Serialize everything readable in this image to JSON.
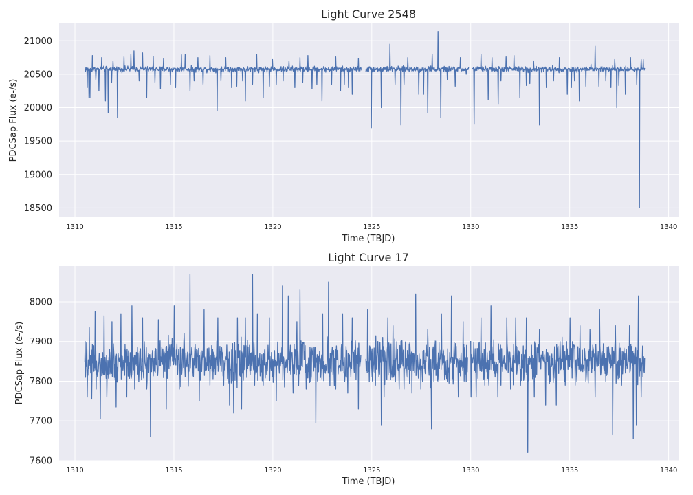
{
  "chart_data": [
    {
      "type": "line",
      "title": "Light Curve 2548",
      "xlabel": "Time (TBJD)",
      "ylabel": "PDCSap Flux (e-/s)",
      "xlim": [
        1309.2,
        1340.5
      ],
      "ylim": [
        18360,
        21260
      ],
      "xticks": [
        1310,
        1315,
        1320,
        1325,
        1330,
        1335,
        1340
      ],
      "yticks": [
        18500,
        19000,
        19500,
        20000,
        20500,
        21000
      ],
      "grid": true,
      "color": "#4c72b0",
      "series": [
        {
          "baseline": 20575,
          "noise": 30,
          "segments": [
            [
              1310.5,
              1324.5
            ],
            [
              1324.7,
              1329.9
            ],
            [
              1330.05,
              1338.8
            ]
          ],
          "x": [
            1310.55,
            1310.62,
            1310.7,
            1310.76,
            1310.82,
            1310.88,
            1311.05,
            1311.22,
            1311.35,
            1311.55,
            1311.68,
            1311.85,
            1311.93,
            1312.15,
            1312.48,
            1312.82,
            1312.98,
            1313.25,
            1313.42,
            1313.62,
            1313.95,
            1314.05,
            1314.32,
            1314.48,
            1314.82,
            1315.08,
            1315.38,
            1315.58,
            1315.82,
            1316.02,
            1316.22,
            1316.48,
            1316.82,
            1317.18,
            1317.38,
            1317.62,
            1317.92,
            1318.18,
            1318.48,
            1318.62,
            1318.98,
            1319.18,
            1319.52,
            1319.82,
            1319.98,
            1320.18,
            1320.52,
            1320.82,
            1321.12,
            1321.38,
            1321.52,
            1321.78,
            1321.98,
            1322.22,
            1322.48,
            1322.98,
            1323.18,
            1323.42,
            1323.62,
            1323.82,
            1324.02,
            1324.32,
            1324.98,
            1325.48,
            1325.92,
            1326.18,
            1326.48,
            1326.62,
            1326.82,
            1327.38,
            1327.62,
            1327.82,
            1328.05,
            1328.35,
            1328.48,
            1328.82,
            1329.22,
            1329.48,
            1329.78,
            1330.18,
            1330.52,
            1330.88,
            1331.08,
            1331.38,
            1331.52,
            1331.78,
            1332.18,
            1332.48,
            1332.82,
            1332.98,
            1333.18,
            1333.48,
            1333.82,
            1334.18,
            1334.48,
            1334.88,
            1335.08,
            1335.25,
            1335.48,
            1335.82,
            1336.08,
            1336.28,
            1336.48,
            1336.82,
            1337.08,
            1337.28,
            1337.38,
            1337.48,
            1337.82,
            1338.08,
            1338.38,
            1338.52,
            1338.62,
            1338.72
          ],
          "y": [
            20600,
            20300,
            20150,
            20150,
            20560,
            20780,
            20420,
            20250,
            20750,
            20100,
            19920,
            20380,
            20700,
            19850,
            20760,
            20800,
            20850,
            20400,
            20820,
            20150,
            20770,
            20380,
            20280,
            20730,
            20350,
            20300,
            20790,
            20800,
            20250,
            20400,
            20750,
            20350,
            20780,
            19950,
            20400,
            20750,
            20300,
            20320,
            20400,
            20100,
            20350,
            20800,
            20150,
            20320,
            20720,
            20350,
            20400,
            20700,
            20300,
            20750,
            20380,
            20780,
            20280,
            20350,
            20100,
            20350,
            20760,
            20250,
            20350,
            20300,
            20200,
            20740,
            19700,
            20000,
            20950,
            20350,
            19740,
            20350,
            20750,
            20200,
            20200,
            19920,
            20800,
            21140,
            19850,
            20420,
            20320,
            20750,
            20500,
            19750,
            20800,
            20120,
            20750,
            20050,
            20400,
            20760,
            20780,
            20150,
            20330,
            20360,
            20700,
            19740,
            20300,
            20400,
            20750,
            20200,
            20300,
            20400,
            20100,
            20320,
            20650,
            20920,
            20320,
            20400,
            20300,
            20720,
            20000,
            20330,
            20200,
            20750,
            20350,
            18500,
            20720,
            20720
          ]
        }
      ]
    },
    {
      "type": "line",
      "title": "Light Curve 17",
      "xlabel": "Time (TBJD)",
      "ylabel": "PDCSap Flux (e-/s)",
      "xlim": [
        1309.2,
        1340.5
      ],
      "ylim": [
        7600,
        8090
      ],
      "xticks": [
        1310,
        1315,
        1320,
        1325,
        1330,
        1335,
        1340
      ],
      "yticks": [
        7600,
        7700,
        7800,
        7900,
        8000
      ],
      "grid": true,
      "color": "#4c72b0",
      "series": [
        {
          "baseline": 7850,
          "noise": 38,
          "segments": [
            [
              1310.5,
              1324.45
            ],
            [
              1324.7,
              1329.85
            ],
            [
              1330.0,
              1338.8
            ]
          ],
          "x": [
            1310.52,
            1310.62,
            1310.72,
            1310.85,
            1311.02,
            1311.08,
            1311.28,
            1311.48,
            1311.62,
            1311.88,
            1312.08,
            1312.32,
            1312.62,
            1312.88,
            1313.02,
            1313.42,
            1313.62,
            1313.82,
            1314.22,
            1314.62,
            1315.02,
            1315.28,
            1315.52,
            1315.82,
            1316.28,
            1316.52,
            1316.82,
            1317.22,
            1317.52,
            1317.82,
            1318.02,
            1318.22,
            1318.42,
            1318.62,
            1318.98,
            1319.08,
            1319.22,
            1319.52,
            1319.82,
            1320.18,
            1320.48,
            1320.78,
            1321.02,
            1321.22,
            1321.38,
            1321.68,
            1321.92,
            1322.18,
            1322.52,
            1322.82,
            1323.18,
            1323.52,
            1323.78,
            1324.02,
            1324.32,
            1324.78,
            1325.18,
            1325.48,
            1325.62,
            1325.82,
            1326.08,
            1326.38,
            1326.62,
            1326.82,
            1327.02,
            1327.22,
            1327.48,
            1327.82,
            1328.02,
            1328.38,
            1328.52,
            1328.82,
            1329.02,
            1329.38,
            1329.62,
            1330.02,
            1330.28,
            1330.52,
            1330.72,
            1330.92,
            1331.02,
            1331.38,
            1331.52,
            1331.82,
            1332.02,
            1332.28,
            1332.52,
            1332.82,
            1332.88,
            1333.22,
            1333.48,
            1333.78,
            1334.02,
            1334.32,
            1334.52,
            1334.78,
            1335.02,
            1335.28,
            1335.52,
            1335.82,
            1336.02,
            1336.28,
            1336.52,
            1336.82,
            1337.18,
            1337.32,
            1337.62,
            1338.02,
            1338.22,
            1338.38,
            1338.48,
            1338.62
          ],
          "y": [
            7900,
            7760,
            7935,
            7755,
            7975,
            7780,
            7705,
            7965,
            7760,
            7950,
            7735,
            7970,
            7760,
            7990,
            7780,
            7960,
            7780,
            7660,
            7955,
            7730,
            7990,
            7780,
            7920,
            8070,
            7750,
            7980,
            7790,
            7960,
            7790,
            7740,
            7720,
            7960,
            7730,
            7960,
            8070,
            7790,
            7970,
            7790,
            7960,
            7750,
            8040,
            8015,
            7770,
            7950,
            8030,
            7780,
            7800,
            7695,
            7970,
            8050,
            7780,
            7970,
            7770,
            7960,
            7730,
            7980,
            7790,
            7690,
            7760,
            7960,
            7940,
            7780,
            7780,
            7810,
            7770,
            8020,
            7780,
            7930,
            7680,
            7800,
            7970,
            7800,
            8015,
            7760,
            7950,
            7760,
            7760,
            7960,
            7790,
            7790,
            7990,
            7760,
            7790,
            7960,
            7780,
            7960,
            7790,
            7960,
            7620,
            7760,
            7930,
            7740,
            7800,
            7740,
            7900,
            7790,
            7960,
            7790,
            7940,
            7800,
            7930,
            7760,
            7980,
            7800,
            7665,
            7940,
            7790,
            7940,
            7655,
            7690,
            8015,
            7760
          ]
        }
      ]
    }
  ]
}
